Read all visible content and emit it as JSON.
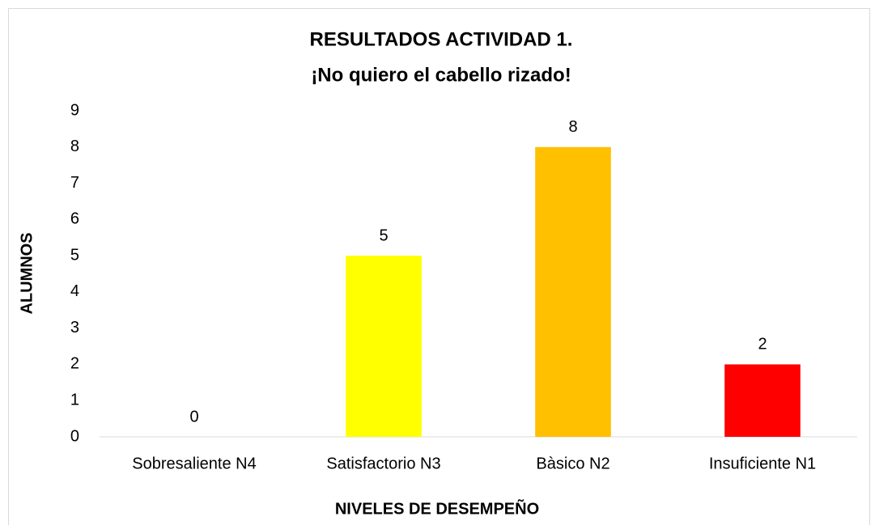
{
  "chart_data": {
    "type": "bar",
    "title": [
      "RESULTADOS ACTIVIDAD 1.",
      "¡No quiero el cabello rizado!"
    ],
    "x_label": "NIVELES DE DESEMPEÑO",
    "y_label": "ALUMNOS",
    "categories": [
      "Sobresaliente N4",
      "Satisfactorio N3",
      "Bàsico N2",
      "Insuficiente N1"
    ],
    "values": [
      0,
      5,
      8,
      2
    ],
    "colors": [
      "#00b050",
      "#ffff00",
      "#ffc000",
      "#ff0000"
    ],
    "ylim": [
      0,
      9
    ],
    "yticks": [
      0,
      1,
      2,
      3,
      4,
      5,
      6,
      7,
      8,
      9
    ],
    "grid": false,
    "data_labels": true
  }
}
